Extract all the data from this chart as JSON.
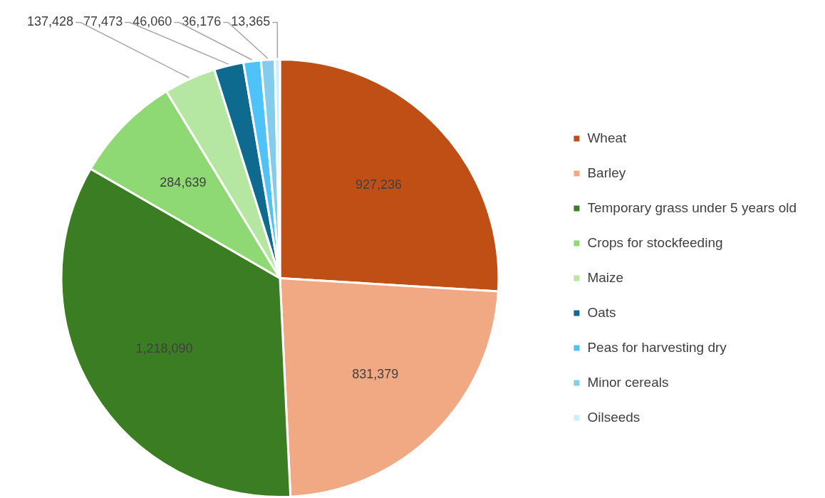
{
  "chart_data": {
    "type": "pie",
    "categories": [
      "Wheat",
      "Barley",
      "Temporary grass under 5 years old",
      "Crops for stockfeeding",
      "Maize",
      "Oats",
      "Peas for harvesting dry",
      "Minor cereals",
      "Oilseeds"
    ],
    "values": [
      927236,
      831379,
      1218090,
      284639,
      137428,
      77473,
      46060,
      36176,
      13365
    ],
    "colors": [
      "#c04f15",
      "#f1a983",
      "#3b7d23",
      "#8ed973",
      "#b5e6a2",
      "#0e6a8f",
      "#4fc3f7",
      "#83cceb",
      "#caeefb"
    ],
    "value_labels": [
      "927,236",
      "831,379",
      "1,218,090",
      "284,639",
      "137,428",
      "77,473",
      "46,060",
      "36,176",
      "13,365"
    ],
    "legend": "right"
  }
}
